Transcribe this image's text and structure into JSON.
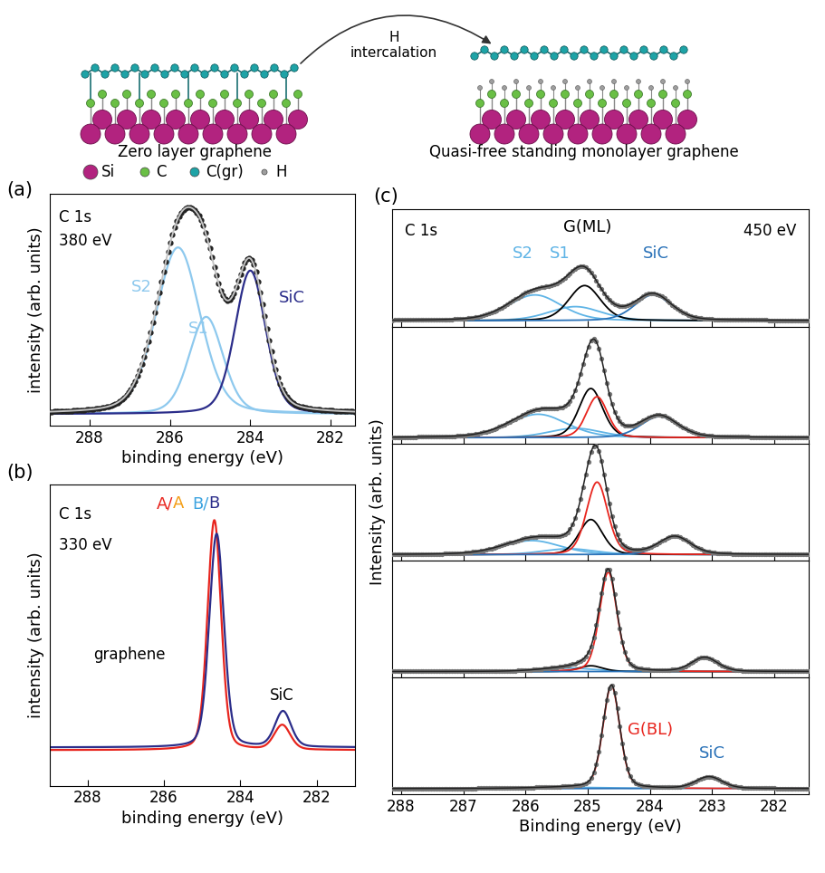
{
  "schematic": {
    "left_label": "Zero layer graphene",
    "right_label": "Quasi-free standing monolayer graphene",
    "arrow_label": "H\nintercalation",
    "legend": [
      {
        "label": "Si",
        "color": "#b2237f"
      },
      {
        "label": "C",
        "color": "#6abf45"
      },
      {
        "label": "C(gr)",
        "color": "#1ea3a6"
      },
      {
        "label": "H",
        "color": "#9e9e9e"
      }
    ]
  },
  "chart_data": [
    {
      "type": "line",
      "panel_label": "(a)",
      "title": "C 1s",
      "photon_energy": "380 eV",
      "xlabel": "binding energy (eV)",
      "ylabel": "intensity (arb. units)",
      "xlim": [
        289,
        281.4
      ],
      "xticks": [
        288,
        286,
        284,
        282
      ],
      "ylim": [
        0,
        1
      ],
      "tick_labels": "x",
      "baseline": 0.05,
      "components": [
        {
          "name": "S2",
          "color": "#8ec9ee",
          "center": 285.8,
          "height": 0.72,
          "fwhm": 1.3
        },
        {
          "name": "S1",
          "color": "#8ec9ee",
          "center": 285.1,
          "height": 0.42,
          "fwhm": 1.0
        },
        {
          "name": "SiC",
          "color": "#2b2d8a",
          "center": 284.0,
          "height": 0.62,
          "fwhm": 0.9
        }
      ],
      "labels": [
        "S2",
        "S1",
        "SiC"
      ]
    },
    {
      "type": "line",
      "panel_label": "(b)",
      "title": "C 1s",
      "photon_energy": "330 eV",
      "xlabel": "binding energy (eV)",
      "ylabel": "intensity (arb. units)",
      "xlim": [
        289,
        281
      ],
      "xticks": [
        288,
        286,
        284,
        282
      ],
      "ylim": [
        0,
        1.1
      ],
      "tick_labels": "x",
      "series": [
        {
          "name_parts": [
            {
              "text": "A/",
              "color": "#e8251e"
            },
            {
              "text": "A",
              "color": "#f39c12"
            }
          ],
          "color": "#e8251e",
          "baseline": 0.13,
          "peaks": [
            {
              "center": 284.68,
              "height": 0.84,
              "fwhm": 0.42
            },
            {
              "center": 282.9,
              "height": 0.09,
              "fwhm": 0.5
            }
          ]
        },
        {
          "name_parts": [
            {
              "text": "B/",
              "color": "#3ba3e0"
            },
            {
              "text": "B",
              "color": "#2b2d8a"
            }
          ],
          "color": "#2b2d8a",
          "baseline": 0.14,
          "peaks": [
            {
              "center": 284.62,
              "height": 0.78,
              "fwhm": 0.45
            },
            {
              "center": 282.88,
              "height": 0.13,
              "fwhm": 0.5
            }
          ]
        }
      ],
      "annotations": [
        "graphene",
        "SiC"
      ]
    },
    {
      "type": "line",
      "panel_label": "(c)",
      "title": "C 1s",
      "photon_energy": "450 eV",
      "xlabel": "Binding energy (eV)",
      "ylabel": "Intensity (arb. units)",
      "xlim": [
        288.15,
        281.45
      ],
      "xticks": [
        288,
        287,
        286,
        285,
        284,
        283,
        282
      ],
      "ylim": [
        0,
        1
      ],
      "tick_labels": "x",
      "spectra": [
        {
          "baseline": 0.05,
          "components": [
            {
              "name": "S2",
              "color": "#5fb4e6",
              "center": 285.85,
              "height": 0.22,
              "fwhm": 1.0
            },
            {
              "name": "S1",
              "color": "#5fb4e6",
              "center": 285.2,
              "height": 0.12,
              "fwhm": 1.0
            },
            {
              "name": "G(ML)",
              "color": "#000000",
              "center": 285.05,
              "height": 0.3,
              "fwhm": 0.6
            },
            {
              "name": "SiC",
              "color": "#2a72b8",
              "center": 283.95,
              "height": 0.22,
              "fwhm": 0.7
            }
          ],
          "labels": [
            "S2",
            "S1",
            "G(ML)",
            "SiC"
          ]
        },
        {
          "baseline": 0.05,
          "components": [
            {
              "name": "S2",
              "color": "#5fb4e6",
              "center": 285.8,
              "height": 0.2,
              "fwhm": 1.1
            },
            {
              "name": "S1",
              "color": "#5fb4e6",
              "center": 285.2,
              "height": 0.08,
              "fwhm": 1.0
            },
            {
              "name": "G(ML)",
              "color": "#000000",
              "center": 284.95,
              "height": 0.42,
              "fwhm": 0.45
            },
            {
              "name": "G(BL)",
              "color": "#e8251e",
              "center": 284.85,
              "height": 0.35,
              "fwhm": 0.4
            },
            {
              "name": "SiC",
              "color": "#2a72b8",
              "center": 283.85,
              "height": 0.18,
              "fwhm": 0.7
            }
          ],
          "labels": []
        },
        {
          "baseline": 0.05,
          "components": [
            {
              "name": "S2",
              "color": "#5fb4e6",
              "center": 285.9,
              "height": 0.12,
              "fwhm": 1.1
            },
            {
              "name": "S1",
              "color": "#5fb4e6",
              "center": 285.3,
              "height": 0.05,
              "fwhm": 1.0
            },
            {
              "name": "G(ML)",
              "color": "#000000",
              "center": 284.95,
              "height": 0.3,
              "fwhm": 0.45
            },
            {
              "name": "G(BL)",
              "color": "#e8251e",
              "center": 284.85,
              "height": 0.62,
              "fwhm": 0.4
            },
            {
              "name": "SiC",
              "color": "#2a72b8",
              "center": 283.6,
              "height": 0.15,
              "fwhm": 0.6
            }
          ],
          "labels": []
        },
        {
          "baseline": 0.05,
          "components": [
            {
              "name": "S1",
              "color": "#5fb4e6",
              "center": 285.3,
              "height": 0.03,
              "fwhm": 1.0
            },
            {
              "name": "G(ML)",
              "color": "#000000",
              "center": 284.95,
              "height": 0.05,
              "fwhm": 0.45
            },
            {
              "name": "G(BL)",
              "color": "#e8251e",
              "center": 284.67,
              "height": 0.85,
              "fwhm": 0.33
            },
            {
              "name": "SiC",
              "color": "#2a72b8",
              "center": 283.12,
              "height": 0.12,
              "fwhm": 0.5
            }
          ],
          "labels": []
        },
        {
          "baseline": 0.05,
          "components": [
            {
              "name": "S1",
              "color": "#5fb4e6",
              "center": 285.2,
              "height": 0.01,
              "fwhm": 1.5
            },
            {
              "name": "G(BL)",
              "color": "#e8251e",
              "center": 284.62,
              "height": 0.88,
              "fwhm": 0.32
            },
            {
              "name": "SiC",
              "color": "#2a72b8",
              "center": 283.05,
              "height": 0.1,
              "fwhm": 0.5
            }
          ],
          "labels": [
            "G(BL)",
            "SiC"
          ]
        }
      ]
    }
  ]
}
